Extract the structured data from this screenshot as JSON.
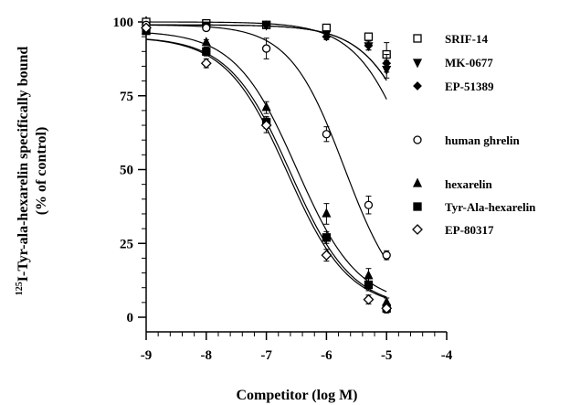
{
  "chart_data": {
    "type": "scatter",
    "xlabel": "Competitor (log M)",
    "ylabel_sup": "125",
    "ylabel_line1": "I-Tyr-ala-hexarelin specifically bound",
    "ylabel_line2": "(% of control)",
    "xlim": [
      -9,
      -4
    ],
    "ylim": [
      0,
      100
    ],
    "x_ticks": [
      -9,
      -8,
      -7,
      -6,
      -5,
      -4
    ],
    "y_ticks": [
      0,
      25,
      50,
      75,
      100
    ],
    "x_tick_labels": [
      "-9",
      "-8",
      "-7",
      "-6",
      "-5",
      "-4"
    ],
    "y_tick_labels": [
      "0",
      "25",
      "50",
      "75",
      "100"
    ],
    "grid": false,
    "legend_position": "right",
    "series": [
      {
        "name": "SRIF-14",
        "marker": "square-open",
        "ic50": -4.5,
        "hill": 0.9,
        "top": 100,
        "bottom": 0,
        "x": [
          -9,
          -8,
          -7,
          -6,
          -5.3,
          -5
        ],
        "y": [
          100,
          99.5,
          99,
          98,
          95,
          89
        ],
        "err": [
          0.8,
          0.8,
          0.8,
          0.8,
          1.0,
          4
        ]
      },
      {
        "name": "MK-0677",
        "marker": "triangle-down-filled",
        "ic50": -4.3,
        "hill": 0.9,
        "top": 99,
        "bottom": 0,
        "x": [
          -9,
          -8,
          -7,
          -6,
          -5.3,
          -5
        ],
        "y": [
          98,
          99,
          99,
          96,
          92,
          84
        ],
        "err": [
          0.8,
          0.8,
          0.8,
          1.0,
          1.5,
          3
        ]
      },
      {
        "name": "EP-51389",
        "marker": "diamond-filled",
        "ic50": -4.3,
        "hill": 0.9,
        "top": 99,
        "bottom": 0,
        "x": [
          -9,
          -8,
          -7,
          -6,
          -5.3,
          -5
        ],
        "y": [
          98,
          98.5,
          99,
          95,
          92,
          86
        ],
        "err": [
          0.8,
          0.8,
          0.8,
          1.0,
          1.5,
          3
        ]
      },
      {
        "name": "human ghrelin",
        "marker": "circle-open",
        "ic50": -5.7,
        "hill": 0.95,
        "top": 99,
        "bottom": 2,
        "x": [
          -9,
          -8,
          -7,
          -6,
          -5.3,
          -5
        ],
        "y": [
          99,
          98,
          91,
          62,
          38,
          21
        ],
        "err": [
          0.8,
          1.0,
          3.5,
          2.5,
          3,
          1.5
        ]
      },
      {
        "name": "hexarelin",
        "marker": "triangle-up-filled",
        "ic50": -6.5,
        "hill": 0.85,
        "top": 97,
        "bottom": 4,
        "x": [
          -9,
          -8,
          -7,
          -6,
          -5.3,
          -5
        ],
        "y": [
          97,
          93,
          71,
          35,
          14,
          5
        ],
        "err": [
          1.0,
          1.0,
          2,
          3.5,
          2.5,
          1.5
        ]
      },
      {
        "name": "Tyr-Ala-hexarelin",
        "marker": "square-filled",
        "ic50": -6.6,
        "hill": 0.85,
        "top": 95,
        "bottom": 3,
        "x": [
          -9,
          -8,
          -7,
          -6,
          -5.3,
          -5
        ],
        "y": [
          97,
          90,
          66,
          27,
          11,
          3
        ],
        "err": [
          1.0,
          1.5,
          2,
          2,
          2,
          1.5
        ]
      },
      {
        "name": "EP-80317",
        "marker": "diamond-open",
        "ic50": -6.65,
        "hill": 0.85,
        "top": 95,
        "bottom": 3,
        "x": [
          -9,
          -8,
          -7,
          -6,
          -5.3,
          -5
        ],
        "y": [
          98,
          86,
          65,
          21,
          6,
          3
        ],
        "err": [
          1.0,
          1.5,
          2.5,
          2,
          1.5,
          1.5
        ]
      }
    ]
  }
}
